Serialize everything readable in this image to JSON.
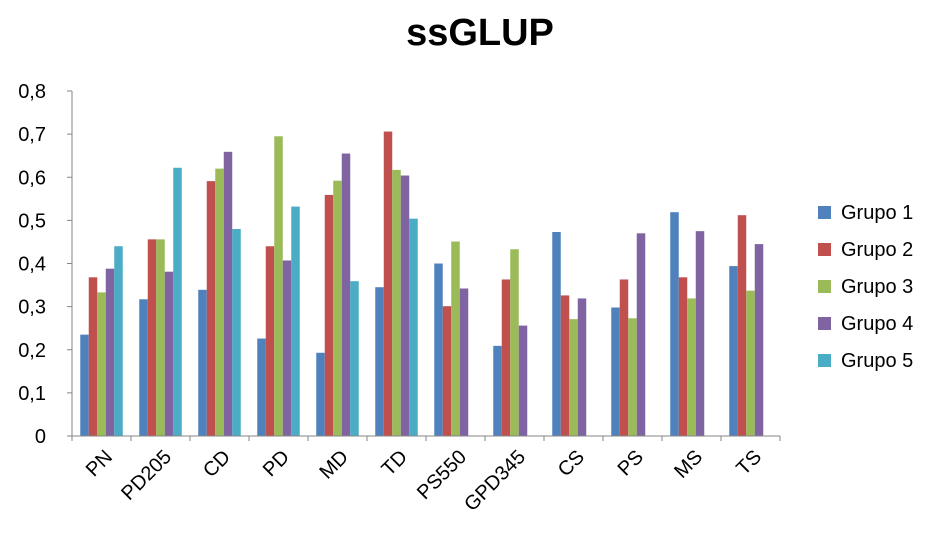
{
  "chart_data": {
    "type": "bar",
    "title": "ssGLUP",
    "xlabel": "",
    "ylabel": "",
    "ylim": [
      0,
      0.8
    ],
    "yticks": [
      "0",
      "0,1",
      "0,2",
      "0,3",
      "0,4",
      "0,5",
      "0,6",
      "0,7",
      "0,8"
    ],
    "grid": false,
    "legend_position": "right",
    "categories": [
      "PN",
      "PD205",
      "CD",
      "PD",
      "MD",
      "TD",
      "PS550",
      "GPD345",
      "CS",
      "PS",
      "MS",
      "TS"
    ],
    "series": [
      {
        "name": "Grupo 1",
        "color": "#4F81BD",
        "values": [
          0.235,
          0.317,
          0.339,
          0.226,
          0.193,
          0.345,
          0.4,
          0.209,
          0.473,
          0.298,
          0.519,
          0.394
        ]
      },
      {
        "name": "Grupo 2",
        "color": "#C0504D",
        "values": [
          0.368,
          0.456,
          0.591,
          0.44,
          0.559,
          0.706,
          0.301,
          0.363,
          0.326,
          0.363,
          0.368,
          0.512
        ]
      },
      {
        "name": "Grupo 3",
        "color": "#9BBB59",
        "values": [
          0.333,
          0.456,
          0.62,
          0.695,
          0.592,
          0.617,
          0.451,
          0.433,
          0.271,
          0.273,
          0.319,
          0.337
        ]
      },
      {
        "name": "Grupo 4",
        "color": "#8064A2",
        "values": [
          0.388,
          0.381,
          0.659,
          0.407,
          0.655,
          0.604,
          0.342,
          0.256,
          0.319,
          0.47,
          0.475,
          0.445
        ]
      },
      {
        "name": "Grupo 5",
        "color": "#4BACC6",
        "values": [
          0.44,
          0.622,
          0.48,
          0.532,
          0.359,
          0.504,
          null,
          null,
          null,
          null,
          null,
          null
        ]
      }
    ]
  }
}
